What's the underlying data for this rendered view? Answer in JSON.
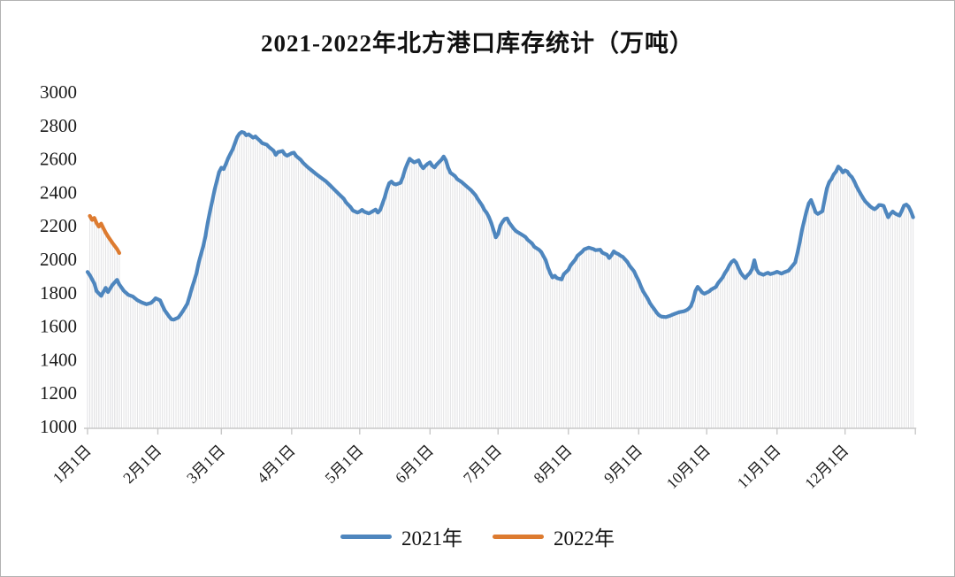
{
  "chart_data": {
    "type": "line",
    "title": "2021-2022年北方港口库存统计（万吨）",
    "xlabel": "",
    "ylabel": "",
    "ylim": [
      1000,
      3000
    ],
    "y_ticks": [
      3000,
      2800,
      2600,
      2400,
      2200,
      2000,
      1800,
      1600,
      1400,
      1200,
      1000
    ],
    "x_tick_labels": [
      "1月1日",
      "2月1日",
      "3月1日",
      "4月1日",
      "5月1日",
      "6月1日",
      "7月1日",
      "8月1日",
      "9月1日",
      "10月1日",
      "11月1日",
      "12月1日"
    ],
    "x_tick_days": [
      0,
      31,
      59,
      90,
      120,
      151,
      181,
      212,
      243,
      273,
      304,
      334,
      365
    ],
    "grid": "none",
    "drop_lines": true,
    "legend_position": "bottom",
    "axis_color": "#c8c8c8",
    "dropline_color": "#e2e2e4",
    "text_color": "#1a1a1a",
    "series": [
      {
        "name": "2021年",
        "color": "#4e86be",
        "unit": "万吨",
        "x_unit": "day-of-year",
        "data": [
          [
            0,
            1935
          ],
          [
            1,
            1916
          ],
          [
            3,
            1866
          ],
          [
            4,
            1820
          ],
          [
            6,
            1792
          ],
          [
            8,
            1840
          ],
          [
            9,
            1815
          ],
          [
            11,
            1858
          ],
          [
            13,
            1888
          ],
          [
            14,
            1860
          ],
          [
            16,
            1822
          ],
          [
            18,
            1798
          ],
          [
            20,
            1788
          ],
          [
            22,
            1766
          ],
          [
            24,
            1752
          ],
          [
            26,
            1742
          ],
          [
            28,
            1750
          ],
          [
            29,
            1762
          ],
          [
            30,
            1778
          ],
          [
            32,
            1765
          ],
          [
            33,
            1735
          ],
          [
            34,
            1706
          ],
          [
            36,
            1668
          ],
          [
            37,
            1652
          ],
          [
            38,
            1650
          ],
          [
            40,
            1662
          ],
          [
            41,
            1680
          ],
          [
            42,
            1700
          ],
          [
            43,
            1722
          ],
          [
            44,
            1745
          ],
          [
            45,
            1790
          ],
          [
            46,
            1838
          ],
          [
            47,
            1880
          ],
          [
            48,
            1925
          ],
          [
            49,
            1990
          ],
          [
            50,
            2040
          ],
          [
            51,
            2088
          ],
          [
            52,
            2150
          ],
          [
            53,
            2230
          ],
          [
            54,
            2298
          ],
          [
            55,
            2360
          ],
          [
            56,
            2425
          ],
          [
            57,
            2478
          ],
          [
            58,
            2532
          ],
          [
            59,
            2558
          ],
          [
            60,
            2550
          ],
          [
            61,
            2580
          ],
          [
            62,
            2615
          ],
          [
            63,
            2642
          ],
          [
            64,
            2668
          ],
          [
            65,
            2705
          ],
          [
            66,
            2742
          ],
          [
            67,
            2762
          ],
          [
            68,
            2772
          ],
          [
            69,
            2768
          ],
          [
            70,
            2752
          ],
          [
            71,
            2758
          ],
          [
            73,
            2738
          ],
          [
            74,
            2745
          ],
          [
            75,
            2732
          ],
          [
            76,
            2720
          ],
          [
            77,
            2705
          ],
          [
            79,
            2696
          ],
          [
            80,
            2682
          ],
          [
            82,
            2660
          ],
          [
            83,
            2635
          ],
          [
            84,
            2652
          ],
          [
            86,
            2658
          ],
          [
            87,
            2638
          ],
          [
            88,
            2630
          ],
          [
            90,
            2645
          ],
          [
            91,
            2648
          ],
          [
            92,
            2628
          ],
          [
            94,
            2605
          ],
          [
            95,
            2588
          ],
          [
            97,
            2562
          ],
          [
            99,
            2540
          ],
          [
            101,
            2518
          ],
          [
            103,
            2498
          ],
          [
            105,
            2478
          ],
          [
            107,
            2452
          ],
          [
            109,
            2425
          ],
          [
            111,
            2398
          ],
          [
            113,
            2372
          ],
          [
            114,
            2350
          ],
          [
            116,
            2322
          ],
          [
            117,
            2302
          ],
          [
            119,
            2290
          ],
          [
            120,
            2296
          ],
          [
            121,
            2306
          ],
          [
            122,
            2295
          ],
          [
            124,
            2285
          ],
          [
            125,
            2292
          ],
          [
            127,
            2308
          ],
          [
            128,
            2290
          ],
          [
            129,
            2305
          ],
          [
            130,
            2342
          ],
          [
            131,
            2380
          ],
          [
            132,
            2428
          ],
          [
            133,
            2465
          ],
          [
            134,
            2475
          ],
          [
            135,
            2462
          ],
          [
            136,
            2458
          ],
          [
            138,
            2468
          ],
          [
            139,
            2502
          ],
          [
            140,
            2548
          ],
          [
            141,
            2582
          ],
          [
            142,
            2612
          ],
          [
            143,
            2600
          ],
          [
            144,
            2590
          ],
          [
            146,
            2602
          ],
          [
            147,
            2572
          ],
          [
            148,
            2555
          ],
          [
            149,
            2570
          ],
          [
            150,
            2582
          ],
          [
            151,
            2590
          ],
          [
            152,
            2570
          ],
          [
            153,
            2560
          ],
          [
            154,
            2578
          ],
          [
            156,
            2605
          ],
          [
            157,
            2625
          ],
          [
            158,
            2602
          ],
          [
            159,
            2558
          ],
          [
            160,
            2528
          ],
          [
            162,
            2508
          ],
          [
            163,
            2490
          ],
          [
            165,
            2472
          ],
          [
            167,
            2448
          ],
          [
            169,
            2425
          ],
          [
            171,
            2395
          ],
          [
            172,
            2372
          ],
          [
            174,
            2332
          ],
          [
            175,
            2305
          ],
          [
            176,
            2288
          ],
          [
            177,
            2262
          ],
          [
            178,
            2228
          ],
          [
            179,
            2185
          ],
          [
            180,
            2142
          ],
          [
            181,
            2162
          ],
          [
            182,
            2212
          ],
          [
            183,
            2235
          ],
          [
            184,
            2252
          ],
          [
            185,
            2255
          ],
          [
            186,
            2228
          ],
          [
            188,
            2192
          ],
          [
            189,
            2178
          ],
          [
            191,
            2162
          ],
          [
            193,
            2145
          ],
          [
            194,
            2128
          ],
          [
            196,
            2105
          ],
          [
            197,
            2085
          ],
          [
            199,
            2068
          ],
          [
            200,
            2055
          ],
          [
            202,
            2005
          ],
          [
            203,
            1962
          ],
          [
            204,
            1928
          ],
          [
            205,
            1902
          ],
          [
            206,
            1912
          ],
          [
            207,
            1898
          ],
          [
            209,
            1890
          ],
          [
            210,
            1922
          ],
          [
            212,
            1948
          ],
          [
            213,
            1975
          ],
          [
            215,
            2008
          ],
          [
            216,
            2032
          ],
          [
            218,
            2055
          ],
          [
            219,
            2070
          ],
          [
            221,
            2080
          ],
          [
            223,
            2072
          ],
          [
            224,
            2065
          ],
          [
            226,
            2068
          ],
          [
            227,
            2050
          ],
          [
            229,
            2038
          ],
          [
            230,
            2018
          ],
          [
            231,
            2035
          ],
          [
            232,
            2058
          ],
          [
            233,
            2048
          ],
          [
            234,
            2042
          ],
          [
            235,
            2032
          ],
          [
            236,
            2025
          ],
          [
            238,
            1995
          ],
          [
            239,
            1972
          ],
          [
            241,
            1938
          ],
          [
            242,
            1908
          ],
          [
            243,
            1882
          ],
          [
            244,
            1848
          ],
          [
            245,
            1818
          ],
          [
            247,
            1775
          ],
          [
            248,
            1748
          ],
          [
            249,
            1728
          ],
          [
            250,
            1710
          ],
          [
            251,
            1690
          ],
          [
            252,
            1676
          ],
          [
            253,
            1668
          ],
          [
            255,
            1665
          ],
          [
            257,
            1674
          ],
          [
            258,
            1680
          ],
          [
            260,
            1690
          ],
          [
            261,
            1695
          ],
          [
            263,
            1700
          ],
          [
            264,
            1706
          ],
          [
            265,
            1715
          ],
          [
            266,
            1730
          ],
          [
            267,
            1765
          ],
          [
            268,
            1820
          ],
          [
            269,
            1846
          ],
          [
            270,
            1830
          ],
          [
            271,
            1812
          ],
          [
            272,
            1805
          ],
          [
            274,
            1818
          ],
          [
            275,
            1830
          ],
          [
            277,
            1845
          ],
          [
            278,
            1868
          ],
          [
            280,
            1902
          ],
          [
            281,
            1928
          ],
          [
            282,
            1948
          ],
          [
            283,
            1975
          ],
          [
            284,
            1995
          ],
          [
            285,
            2005
          ],
          [
            286,
            1990
          ],
          [
            287,
            1958
          ],
          [
            288,
            1930
          ],
          [
            289,
            1912
          ],
          [
            290,
            1898
          ],
          [
            291,
            1915
          ],
          [
            292,
            1928
          ],
          [
            293,
            1952
          ],
          [
            294,
            2005
          ],
          [
            295,
            1950
          ],
          [
            296,
            1928
          ],
          [
            298,
            1918
          ],
          [
            299,
            1925
          ],
          [
            300,
            1930
          ],
          [
            301,
            1922
          ],
          [
            302,
            1926
          ],
          [
            303,
            1930
          ],
          [
            304,
            1936
          ],
          [
            306,
            1925
          ],
          [
            307,
            1932
          ],
          [
            309,
            1942
          ],
          [
            310,
            1958
          ],
          [
            312,
            1992
          ],
          [
            313,
            2048
          ],
          [
            314,
            2112
          ],
          [
            315,
            2185
          ],
          [
            316,
            2242
          ],
          [
            317,
            2298
          ],
          [
            318,
            2345
          ],
          [
            319,
            2365
          ],
          [
            320,
            2330
          ],
          [
            321,
            2292
          ],
          [
            322,
            2282
          ],
          [
            323,
            2290
          ],
          [
            324,
            2298
          ],
          [
            325,
            2368
          ],
          [
            326,
            2435
          ],
          [
            327,
            2472
          ],
          [
            328,
            2490
          ],
          [
            329,
            2518
          ],
          [
            330,
            2535
          ],
          [
            331,
            2565
          ],
          [
            332,
            2552
          ],
          [
            333,
            2530
          ],
          [
            334,
            2542
          ],
          [
            335,
            2535
          ],
          [
            336,
            2515
          ],
          [
            337,
            2502
          ],
          [
            338,
            2478
          ],
          [
            339,
            2448
          ],
          [
            340,
            2422
          ],
          [
            341,
            2398
          ],
          [
            342,
            2375
          ],
          [
            343,
            2355
          ],
          [
            344,
            2342
          ],
          [
            345,
            2328
          ],
          [
            346,
            2318
          ],
          [
            347,
            2310
          ],
          [
            348,
            2320
          ],
          [
            349,
            2335
          ],
          [
            350,
            2334
          ],
          [
            351,
            2330
          ],
          [
            352,
            2295
          ],
          [
            353,
            2262
          ],
          [
            354,
            2282
          ],
          [
            355,
            2296
          ],
          [
            356,
            2285
          ],
          [
            357,
            2278
          ],
          [
            358,
            2272
          ],
          [
            359,
            2300
          ],
          [
            360,
            2332
          ],
          [
            361,
            2338
          ],
          [
            362,
            2325
          ],
          [
            363,
            2298
          ],
          [
            364,
            2262
          ]
        ]
      },
      {
        "name": "2022年",
        "color": "#dd7b30",
        "unit": "万吨",
        "x_unit": "day-of-year",
        "data": [
          [
            1,
            2270
          ],
          [
            2,
            2246
          ],
          [
            3,
            2258
          ],
          [
            4,
            2226
          ],
          [
            5,
            2206
          ],
          [
            6,
            2224
          ],
          [
            7,
            2196
          ],
          [
            8,
            2170
          ],
          [
            9,
            2148
          ],
          [
            10,
            2128
          ],
          [
            11,
            2108
          ],
          [
            12,
            2090
          ],
          [
            13,
            2072
          ],
          [
            14,
            2048
          ]
        ]
      }
    ]
  }
}
